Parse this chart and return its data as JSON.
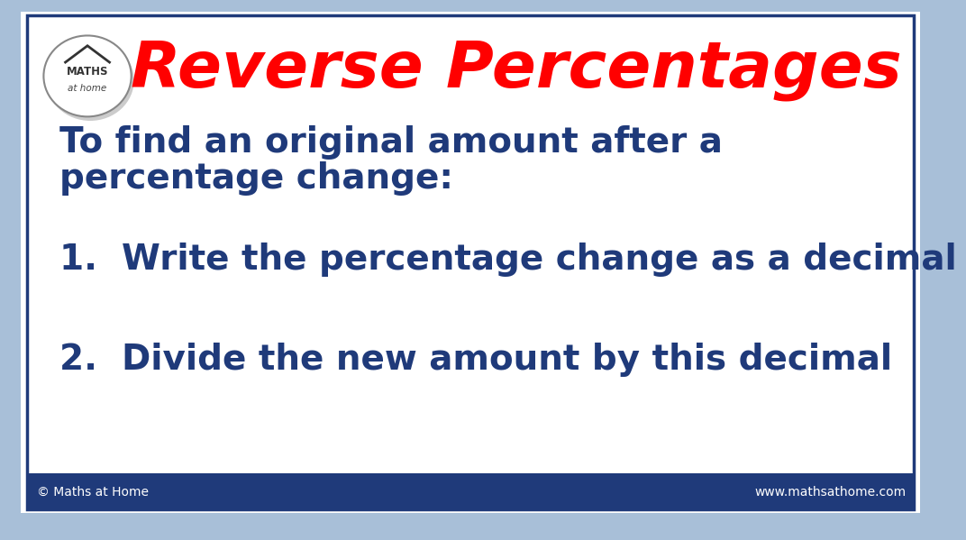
{
  "title": "Reverse Percentages",
  "title_color": "#FF0000",
  "title_fontsize": 52,
  "body_color": "#1F3A7A",
  "background_color": "#FFFFFF",
  "outer_border_color": "#A8BFD8",
  "inner_border_color": "#1F3A7A",
  "footer_bar_color": "#1F3A7A",
  "intro_line1": "To find an original amount after a",
  "intro_line2": "percentage change:",
  "intro_fontsize": 28,
  "step1": "1.  Write the percentage change as a decimal",
  "step2": "2.  Divide the new amount by this decimal",
  "steps_fontsize": 28,
  "footer_left": "© Maths at Home",
  "footer_right": "www.mathsathome.com",
  "footer_fontsize": 10
}
